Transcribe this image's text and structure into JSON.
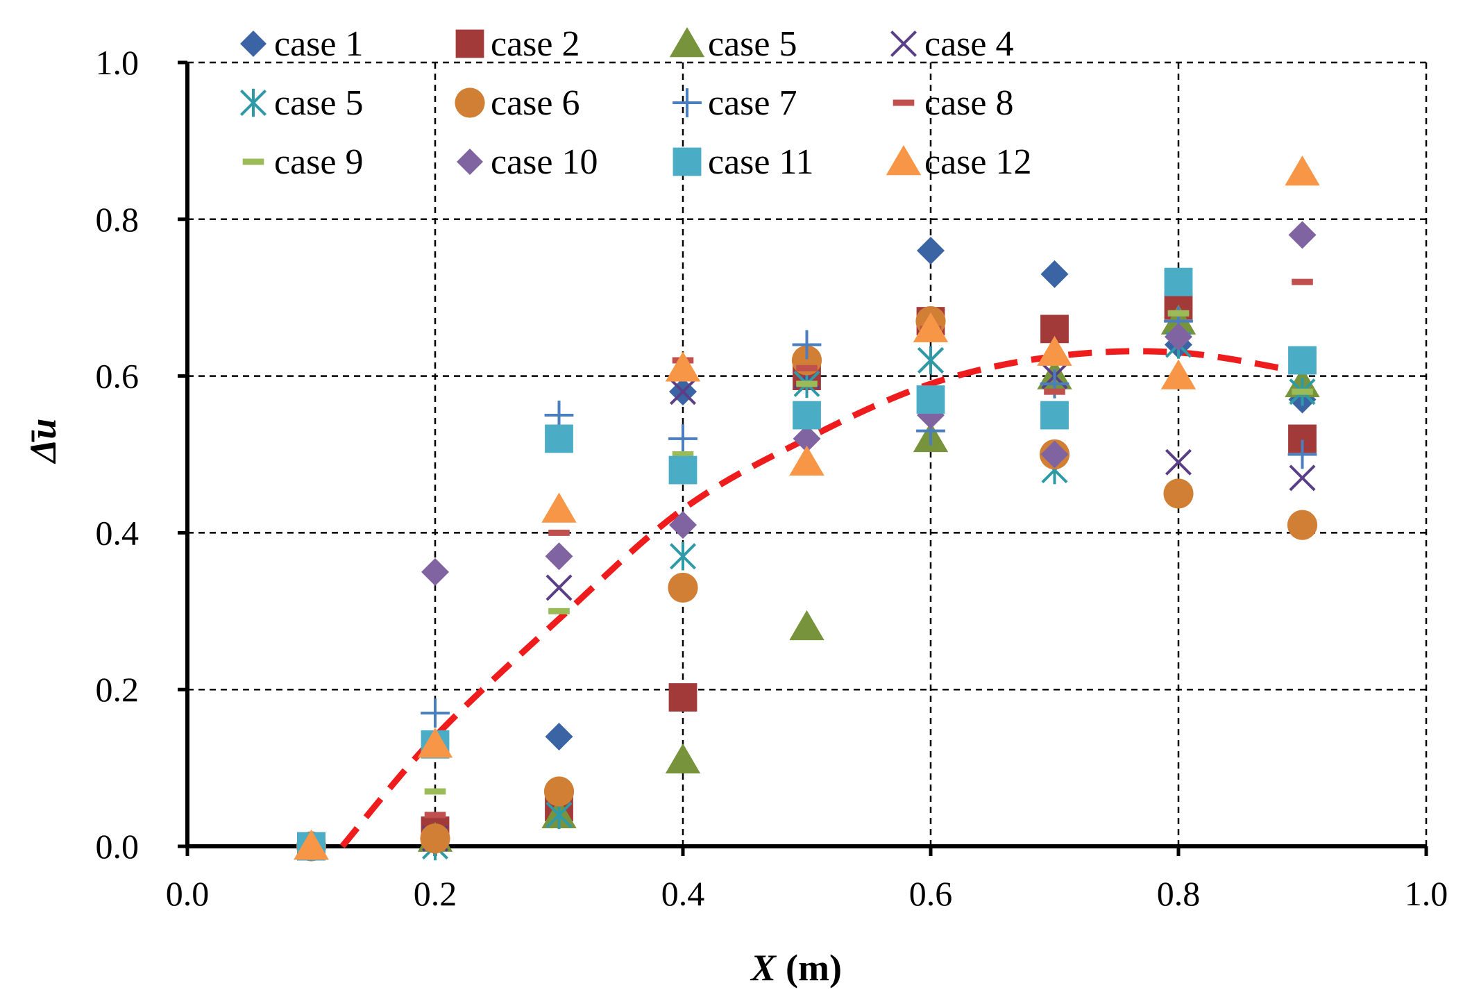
{
  "chart_data": {
    "type": "scatter",
    "title": "",
    "xlabel": "X",
    "xlabel_unit": "(m)",
    "ylabel": "Δ̄u",
    "xlim": [
      0.0,
      1.0
    ],
    "ylim": [
      0.0,
      1.0
    ],
    "x_ticks": [
      "0.0",
      "0.2",
      "0.4",
      "0.6",
      "0.8",
      "1.0"
    ],
    "y_ticks": [
      "0.0",
      "0.2",
      "0.4",
      "0.6",
      "0.8",
      "1.0"
    ],
    "grid": true,
    "legend_position": "top",
    "series": [
      {
        "name": "case 1",
        "marker": "diamond",
        "color": "#3a64a4",
        "points": [
          [
            0.1,
            0.0
          ],
          [
            0.2,
            0.01
          ],
          [
            0.3,
            0.14
          ],
          [
            0.4,
            0.58
          ],
          [
            0.5,
            0.6
          ],
          [
            0.6,
            0.76
          ],
          [
            0.7,
            0.73
          ],
          [
            0.8,
            0.64
          ],
          [
            0.9,
            0.57
          ]
        ]
      },
      {
        "name": "case 2",
        "marker": "square",
        "color": "#a23a3a",
        "points": [
          [
            0.1,
            0.0
          ],
          [
            0.2,
            0.02
          ],
          [
            0.3,
            0.05
          ],
          [
            0.4,
            0.19
          ],
          [
            0.5,
            0.6
          ],
          [
            0.6,
            0.67
          ],
          [
            0.7,
            0.66
          ],
          [
            0.8,
            0.69
          ],
          [
            0.9,
            0.52
          ]
        ]
      },
      {
        "name": "case 5",
        "marker": "triangle",
        "color": "#77933c",
        "points": [
          [
            0.1,
            0.0
          ],
          [
            0.2,
            0.01
          ],
          [
            0.3,
            0.04
          ],
          [
            0.4,
            0.11
          ],
          [
            0.5,
            0.28
          ],
          [
            0.6,
            0.52
          ],
          [
            0.7,
            0.6
          ],
          [
            0.8,
            0.67
          ],
          [
            0.9,
            0.59
          ]
        ]
      },
      {
        "name": "case 4",
        "marker": "x",
        "color": "#5b3f86",
        "points": [
          [
            0.1,
            0.0
          ],
          [
            0.2,
            0.01
          ],
          [
            0.3,
            0.33
          ],
          [
            0.4,
            0.58
          ],
          [
            0.5,
            0.6
          ],
          [
            0.6,
            0.62
          ],
          [
            0.7,
            0.6
          ],
          [
            0.8,
            0.49
          ],
          [
            0.9,
            0.47
          ]
        ]
      },
      {
        "name": "case 5",
        "marker": "star",
        "color": "#2f9aa7",
        "points": [
          [
            0.1,
            0.0
          ],
          [
            0.2,
            0.0
          ],
          [
            0.3,
            0.04
          ],
          [
            0.4,
            0.37
          ],
          [
            0.5,
            0.59
          ],
          [
            0.6,
            0.62
          ],
          [
            0.7,
            0.48
          ],
          [
            0.8,
            0.64
          ],
          [
            0.9,
            0.58
          ]
        ]
      },
      {
        "name": "case 6",
        "marker": "circle",
        "color": "#d07f34",
        "points": [
          [
            0.1,
            0.0
          ],
          [
            0.2,
            0.01
          ],
          [
            0.3,
            0.07
          ],
          [
            0.4,
            0.33
          ],
          [
            0.5,
            0.62
          ],
          [
            0.6,
            0.67
          ],
          [
            0.7,
            0.5
          ],
          [
            0.8,
            0.45
          ],
          [
            0.9,
            0.41
          ]
        ]
      },
      {
        "name": "case 7",
        "marker": "plus",
        "color": "#4a7ebf",
        "points": [
          [
            0.1,
            0.0
          ],
          [
            0.2,
            0.17
          ],
          [
            0.3,
            0.55
          ],
          [
            0.4,
            0.52
          ],
          [
            0.5,
            0.64
          ],
          [
            0.6,
            0.53
          ],
          [
            0.7,
            0.59
          ],
          [
            0.8,
            0.67
          ],
          [
            0.9,
            0.5
          ]
        ]
      },
      {
        "name": "case 8",
        "marker": "dash",
        "color": "#c0504d",
        "points": [
          [
            0.1,
            0.0
          ],
          [
            0.2,
            0.04
          ],
          [
            0.3,
            0.4
          ],
          [
            0.4,
            0.62
          ],
          [
            0.5,
            0.61
          ],
          [
            0.6,
            0.66
          ],
          [
            0.7,
            0.58
          ],
          [
            0.8,
            0.68
          ],
          [
            0.9,
            0.72
          ]
        ]
      },
      {
        "name": "case 9",
        "marker": "dash",
        "color": "#9bbb59",
        "points": [
          [
            0.1,
            0.0
          ],
          [
            0.2,
            0.07
          ],
          [
            0.3,
            0.3
          ],
          [
            0.4,
            0.5
          ],
          [
            0.5,
            0.59
          ],
          [
            0.6,
            0.65
          ],
          [
            0.7,
            0.62
          ],
          [
            0.8,
            0.68
          ],
          [
            0.9,
            0.58
          ]
        ]
      },
      {
        "name": "case 10",
        "marker": "diamond",
        "color": "#8064a2",
        "points": [
          [
            0.1,
            0.0
          ],
          [
            0.2,
            0.35
          ],
          [
            0.3,
            0.37
          ],
          [
            0.4,
            0.41
          ],
          [
            0.5,
            0.52
          ],
          [
            0.6,
            0.55
          ],
          [
            0.7,
            0.5
          ],
          [
            0.8,
            0.65
          ],
          [
            0.9,
            0.78
          ]
        ]
      },
      {
        "name": "case 11",
        "marker": "square",
        "color": "#4bacc6",
        "points": [
          [
            0.1,
            0.0
          ],
          [
            0.2,
            0.13
          ],
          [
            0.3,
            0.52
          ],
          [
            0.4,
            0.48
          ],
          [
            0.5,
            0.55
          ],
          [
            0.6,
            0.57
          ],
          [
            0.7,
            0.55
          ],
          [
            0.8,
            0.72
          ],
          [
            0.9,
            0.62
          ]
        ]
      },
      {
        "name": "case 12",
        "marker": "triangle",
        "color": "#f79646",
        "points": [
          [
            0.1,
            0.0
          ],
          [
            0.2,
            0.13
          ],
          [
            0.3,
            0.43
          ],
          [
            0.4,
            0.61
          ],
          [
            0.5,
            0.49
          ],
          [
            0.6,
            0.66
          ],
          [
            0.7,
            0.63
          ],
          [
            0.8,
            0.6
          ],
          [
            0.9,
            0.86
          ]
        ]
      }
    ],
    "trend_line": {
      "style": "dashed",
      "color": "#ee1c1c",
      "points": [
        [
          0.125,
          0.0
        ],
        [
          0.2,
          0.14
        ],
        [
          0.3,
          0.29
        ],
        [
          0.4,
          0.43
        ],
        [
          0.5,
          0.52
        ],
        [
          0.6,
          0.59
        ],
        [
          0.7,
          0.625
        ],
        [
          0.8,
          0.63
        ],
        [
          0.9,
          0.605
        ]
      ]
    }
  }
}
